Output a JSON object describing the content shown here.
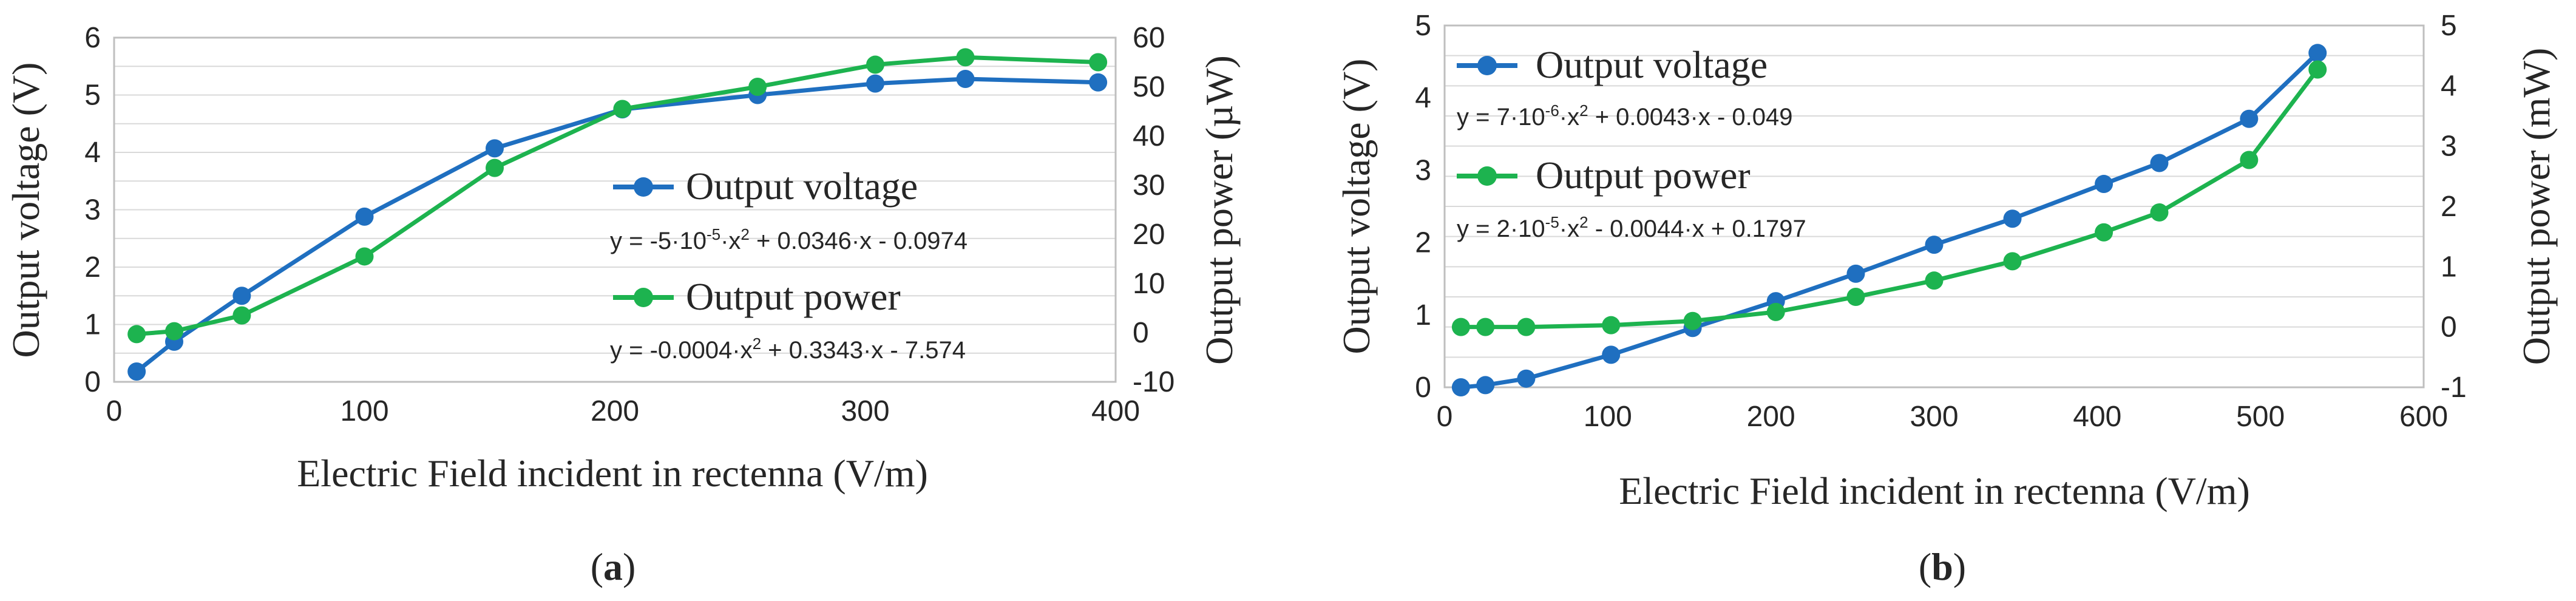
{
  "colors": {
    "voltage": "#1f6fc0",
    "power": "#1db34f"
  },
  "chart_data": [
    {
      "type": "line",
      "panel_label": "a",
      "xlabel": "Electric Field incident in rectenna (V/m)",
      "ylabel_left": "Output voltage (V)",
      "ylabel_right": "Output power (µW)",
      "xlim": [
        0,
        400
      ],
      "ylim_left": [
        0,
        6
      ],
      "ylim_right": [
        -10,
        60
      ],
      "x_ticks": [
        "0",
        "100",
        "200",
        "300",
        "400"
      ],
      "y_left_ticks": [
        "0",
        "1",
        "2",
        "3",
        "4",
        "5",
        "6"
      ],
      "y_right_ticks": [
        "-10",
        "0",
        "10",
        "20",
        "30",
        "40",
        "50",
        "60"
      ],
      "series": [
        {
          "name": "Output voltage",
          "axis": "left",
          "x": [
            9,
            24,
            51,
            100,
            152,
            203,
            257,
            304,
            340,
            393
          ],
          "values": [
            0.18,
            0.7,
            1.5,
            2.88,
            4.07,
            4.75,
            5.0,
            5.2,
            5.28,
            5.22
          ],
          "equation_lead": "y = -5·10",
          "equation_exp": "-5",
          "equation_tail": "·x",
          "equation_sq": "2",
          "equation_rest": " + 0.0346·x - 0.0974"
        },
        {
          "name": "Output power",
          "axis": "right",
          "x": [
            9,
            24,
            51,
            100,
            152,
            203,
            257,
            304,
            340,
            393
          ],
          "values": [
            -0.3,
            0.3,
            3.5,
            15.5,
            33.5,
            45.5,
            50,
            54.5,
            56,
            55
          ],
          "equation_lead": "y = -0.0004·x",
          "equation_exp": "",
          "equation_tail": "",
          "equation_sq": "2",
          "equation_rest": " + 0.3343·x - 7.574"
        }
      ]
    },
    {
      "type": "line",
      "panel_label": "b",
      "xlabel": "Electric Field incident in rectenna (V/m)",
      "ylabel_left": "Output voltage (V)",
      "ylabel_right": "Output power (mW)",
      "xlim": [
        0,
        600
      ],
      "ylim_left": [
        0,
        5
      ],
      "ylim_right": [
        -1,
        5
      ],
      "x_ticks": [
        "0",
        "100",
        "200",
        "300",
        "400",
        "500",
        "600"
      ],
      "y_left_ticks": [
        "0",
        "1",
        "2",
        "3",
        "4",
        "5"
      ],
      "y_right_ticks": [
        "-1",
        "0",
        "1",
        "2",
        "3",
        "4",
        "5"
      ],
      "series": [
        {
          "name": "Output voltage",
          "axis": "left",
          "x": [
            10,
            25,
            50,
            102,
            152,
            203,
            252,
            300,
            348,
            404,
            438,
            493,
            535
          ],
          "values": [
            0.0,
            0.03,
            0.12,
            0.45,
            0.82,
            1.19,
            1.57,
            1.97,
            2.33,
            2.81,
            3.1,
            3.71,
            4.62
          ],
          "equation_lead": "y = 7·10",
          "equation_exp": "-6",
          "equation_tail": "·x",
          "equation_sq": "2",
          "equation_rest": " + 0.0043·x - 0.049"
        },
        {
          "name": "Output power",
          "axis": "right",
          "x": [
            10,
            25,
            50,
            102,
            152,
            203,
            252,
            300,
            348,
            404,
            438,
            493,
            535
          ],
          "values": [
            0.0,
            0.0,
            0.0,
            0.03,
            0.1,
            0.25,
            0.5,
            0.77,
            1.09,
            1.57,
            1.9,
            2.77,
            4.27
          ],
          "equation_lead": "y = 2·10",
          "equation_exp": "-5",
          "equation_tail": "·x",
          "equation_sq": "2",
          "equation_rest": " - 0.0044·x + 0.1797"
        }
      ]
    }
  ]
}
